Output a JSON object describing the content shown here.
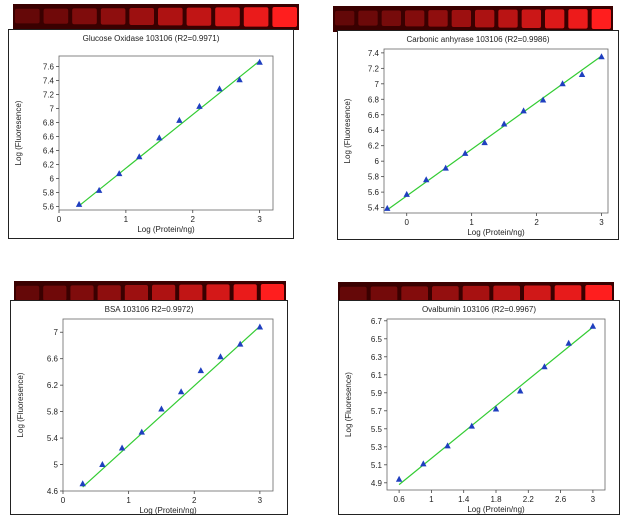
{
  "chart_data": [
    {
      "type": "scatter",
      "title": "Glucose Oxidase 103106 (R2=0.9971)",
      "xlabel": "Log (Protein/ng)",
      "ylabel": "Log (Fluoresence)",
      "xlim": [
        0,
        3.2
      ],
      "ylim": [
        5.55,
        7.75
      ],
      "xticks": [
        "0",
        "1",
        "2",
        "3"
      ],
      "yticks": [
        "5.6",
        "5.8",
        "6",
        "6.2",
        "6.4",
        "6.6",
        "6.8",
        "7",
        "7.2",
        "7.4",
        "7.6"
      ],
      "x": [
        0.3,
        0.6,
        0.9,
        1.2,
        1.5,
        1.8,
        2.1,
        2.4,
        2.7,
        3.0
      ],
      "y": [
        5.63,
        5.83,
        6.07,
        6.31,
        6.58,
        6.83,
        7.03,
        7.28,
        7.41,
        7.66
      ],
      "fit": {
        "x": [
          0.3,
          3.0
        ],
        "y": [
          5.61,
          7.68
        ]
      },
      "gel_lanes": 10
    },
    {
      "type": "scatter",
      "title": "Carbonic anhyrase 103106 (R2=0.9986)",
      "xlabel": "Log (Protein/ng)",
      "ylabel": "Log (Fluoresence)",
      "xlim": [
        -0.35,
        3.1
      ],
      "ylim": [
        5.33,
        7.45
      ],
      "xticks": [
        "0",
        "1",
        "2",
        "3"
      ],
      "yticks": [
        "5.4",
        "5.6",
        "5.8",
        "6",
        "6.2",
        "6.4",
        "6.6",
        "6.8",
        "7",
        "7.2",
        "7.4"
      ],
      "x": [
        -0.3,
        0.0,
        0.3,
        0.6,
        0.9,
        1.2,
        1.5,
        1.8,
        2.1,
        2.4,
        2.7,
        3.0
      ],
      "y": [
        5.39,
        5.57,
        5.76,
        5.91,
        6.1,
        6.24,
        6.48,
        6.65,
        6.79,
        7.0,
        7.12,
        7.35
      ],
      "fit": {
        "x": [
          -0.3,
          3.0
        ],
        "y": [
          5.37,
          7.36
        ]
      },
      "gel_lanes": 12
    },
    {
      "type": "scatter",
      "title": "BSA 103106 R2=0.9972)",
      "xlabel": "Log (Protein/ng)",
      "ylabel": "Log (Fluoresence)",
      "xlim": [
        0,
        3.2
      ],
      "ylim": [
        4.6,
        7.2
      ],
      "xticks": [
        "0",
        "1",
        "2",
        "3"
      ],
      "yticks": [
        "4.6",
        "5",
        "5.4",
        "5.8",
        "6.2",
        "6.6",
        "7"
      ],
      "x": [
        0.3,
        0.6,
        0.9,
        1.2,
        1.5,
        1.8,
        2.1,
        2.4,
        2.7,
        3.0
      ],
      "y": [
        4.71,
        5.0,
        5.25,
        5.49,
        5.84,
        6.1,
        6.42,
        6.63,
        6.82,
        7.08
      ],
      "fit": {
        "x": [
          0.3,
          3.0
        ],
        "y": [
          4.66,
          7.09
        ]
      },
      "gel_lanes": 10
    },
    {
      "type": "scatter",
      "title": "Ovalbumin 103106 (R2=0.9967)",
      "xlabel": "Log (Protein/ng)",
      "ylabel": "Log (Fluoresence)",
      "xlim": [
        0.45,
        3.15
      ],
      "ylim": [
        4.82,
        6.72
      ],
      "xticks": [
        "0.6",
        "1",
        "1.4",
        "1.8",
        "2.2",
        "2.6",
        "3"
      ],
      "yticks": [
        "4.9",
        "5.1",
        "5.3",
        "5.5",
        "5.7",
        "5.9",
        "6.1",
        "6.3",
        "6.5",
        "6.7"
      ],
      "x": [
        0.6,
        0.9,
        1.2,
        1.5,
        1.8,
        2.1,
        2.4,
        2.7,
        3.0
      ],
      "y": [
        4.94,
        5.11,
        5.31,
        5.53,
        5.72,
        5.92,
        6.19,
        6.45,
        6.64
      ],
      "fit": {
        "x": [
          0.6,
          3.0
        ],
        "y": [
          4.88,
          6.63
        ]
      },
      "gel_lanes": 9
    }
  ],
  "colors": {
    "marker": "#1f3fbf",
    "fit_line": "#33cc33",
    "gel_dark": "#3a0000",
    "gel_bright": "#ff1a1a"
  }
}
